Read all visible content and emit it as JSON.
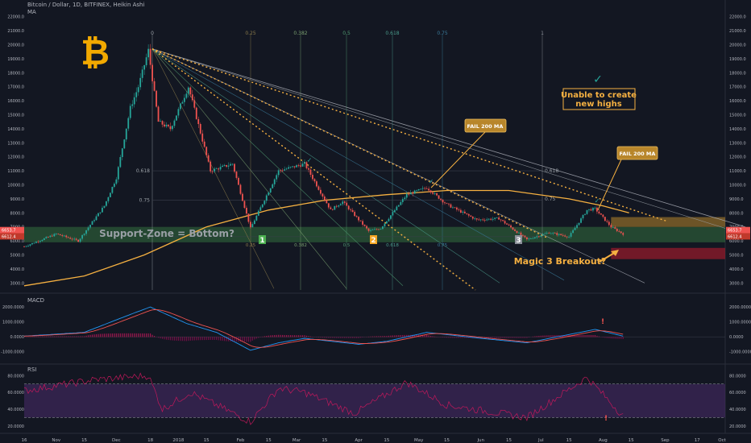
{
  "header": {
    "title": "Bitcoin / Dollar, 1D, BITFINEX, Heikin Ashi",
    "indicator": "MA"
  },
  "colors": {
    "background": "#131722",
    "up": "#26a69a",
    "down": "#ef5350",
    "ma": "#f5b041",
    "support_zone": "#4caf50",
    "resistance_zone": "#b8862b",
    "red_zone": "#8b1a2b",
    "macd_hist_pos": "#c2185b",
    "rsi_band": "#4a2c6b"
  },
  "annotations": {
    "support_zone": "Support-Zone = Bottom?",
    "fail_ma_1": "FAIL 200 MA",
    "fail_ma_2": "FAIL 200 MA",
    "unable": "Unable to create new highs",
    "magic": "Magic 3 Breakout?",
    "marker1": "1",
    "marker2": "2",
    "marker3": "3"
  },
  "fib_labels": {
    "top": [
      "0",
      "0.25",
      "0.382",
      "0.5",
      "0.618",
      "0.75",
      "1"
    ],
    "mid": [
      "0.618",
      "0.75",
      "1"
    ],
    "bottom": [
      "0.25",
      "0.382",
      "0.5",
      "0.618",
      "0.75"
    ],
    "right": [
      "0.618",
      "0.75"
    ]
  },
  "price_axis": [
    "22000.0",
    "21000.0",
    "20000.0",
    "19000.0",
    "18000.0",
    "17000.0",
    "16000.0",
    "15000.0",
    "14000.0",
    "13000.0",
    "12000.0",
    "11000.0",
    "10000.0",
    "9000.0",
    "8000.0",
    "7000.0",
    "6000.0",
    "5000.0",
    "4000.0",
    "3000.0"
  ],
  "price_tags": [
    "6653.7",
    "6612.4"
  ],
  "macd": {
    "label": "MACD",
    "axis": [
      "2000.0000",
      "1000.0000",
      "0.0000",
      "-1000.0000"
    ]
  },
  "rsi": {
    "label": "RSI",
    "axis": [
      "80.0000",
      "60.0000",
      "40.0000",
      "20.0000"
    ]
  },
  "time_axis": [
    "16",
    "Nov",
    "15",
    "Dec",
    "18",
    "2018",
    "15",
    "Feb",
    "15",
    "Mar",
    "15",
    "Apr",
    "15",
    "May",
    "15",
    "Jun",
    "15",
    "Jul",
    "15",
    "Aug",
    "15",
    "Sep",
    "17",
    "Oct"
  ],
  "chart_data": {
    "type": "candlestick",
    "title": "Bitcoin / Dollar, 1D, BITFINEX, Heikin Ashi",
    "ylim": [
      2500,
      22500
    ],
    "y_ticks": [
      3000,
      4000,
      5000,
      6000,
      7000,
      8000,
      9000,
      10000,
      11000,
      12000,
      13000,
      14000,
      15000,
      16000,
      17000,
      18000,
      19000,
      20000,
      21000,
      22000
    ],
    "price_path": [
      [
        "2017-10-16",
        5600
      ],
      [
        "2017-11-01",
        6500
      ],
      [
        "2017-11-12",
        6000
      ],
      [
        "2017-11-25",
        8500
      ],
      [
        "2017-12-01",
        10500
      ],
      [
        "2017-12-08",
        15500
      ],
      [
        "2017-12-12",
        17000
      ],
      [
        "2017-12-17",
        19600
      ],
      [
        "2017-12-22",
        14500
      ],
      [
        "2017-12-28",
        14000
      ],
      [
        "2018-01-06",
        17000
      ],
      [
        "2018-01-17",
        11000
      ],
      [
        "2018-01-28",
        11500
      ],
      [
        "2018-02-06",
        6900
      ],
      [
        "2018-02-20",
        11000
      ],
      [
        "2018-03-05",
        11500
      ],
      [
        "2018-03-18",
        8200
      ],
      [
        "2018-03-24",
        8800
      ],
      [
        "2018-04-06",
        6700
      ],
      [
        "2018-04-12",
        6900
      ],
      [
        "2018-04-25",
        9300
      ],
      [
        "2018-05-05",
        9800
      ],
      [
        "2018-05-15",
        8600
      ],
      [
        "2018-05-30",
        7500
      ],
      [
        "2018-06-10",
        7600
      ],
      [
        "2018-06-24",
        6100
      ],
      [
        "2018-07-05",
        6600
      ],
      [
        "2018-07-15",
        6300
      ],
      [
        "2018-07-24",
        8200
      ],
      [
        "2018-07-28",
        8300
      ],
      [
        "2018-08-05",
        7000
      ],
      [
        "2018-08-11",
        6500
      ]
    ],
    "ma200": [
      [
        "2017-10-16",
        2800
      ],
      [
        "2017-11-15",
        3500
      ],
      [
        "2017-12-15",
        5000
      ],
      [
        "2018-01-15",
        7000
      ],
      [
        "2018-02-15",
        8200
      ],
      [
        "2018-03-15",
        8900
      ],
      [
        "2018-04-15",
        9300
      ],
      [
        "2018-05-15",
        9600
      ],
      [
        "2018-06-15",
        9600
      ],
      [
        "2018-07-15",
        9000
      ],
      [
        "2018-08-01",
        8500
      ],
      [
        "2018-08-14",
        8000
      ]
    ],
    "support_zone": [
      5900,
      7000
    ],
    "resistance_zone": [
      7000,
      7700
    ],
    "red_zone": [
      4700,
      5500
    ],
    "macd": {
      "macd_line": [
        [
          "2017-10-16",
          50
        ],
        [
          "2017-11-15",
          300
        ],
        [
          "2017-12-08",
          1500
        ],
        [
          "2017-12-18",
          2000
        ],
        [
          "2018-01-05",
          900
        ],
        [
          "2018-01-20",
          300
        ],
        [
          "2018-02-06",
          -900
        ],
        [
          "2018-02-20",
          -400
        ],
        [
          "2018-03-05",
          -100
        ],
        [
          "2018-04-01",
          -500
        ],
        [
          "2018-04-15",
          -300
        ],
        [
          "2018-05-05",
          300
        ],
        [
          "2018-06-01",
          -100
        ],
        [
          "2018-06-24",
          -400
        ],
        [
          "2018-07-28",
          500
        ],
        [
          "2018-08-14",
          -50
        ]
      ]
    },
    "rsi": {
      "levels": [
        70,
        30
      ],
      "line": [
        [
          "2017-10-16",
          62
        ],
        [
          "2017-11-20",
          75
        ],
        [
          "2017-12-17",
          80
        ],
        [
          "2017-12-24",
          40
        ],
        [
          "2018-01-07",
          60
        ],
        [
          "2018-02-06",
          25
        ],
        [
          "2018-02-20",
          65
        ],
        [
          "2018-03-05",
          60
        ],
        [
          "2018-03-30",
          35
        ],
        [
          "2018-04-25",
          72
        ],
        [
          "2018-05-15",
          45
        ],
        [
          "2018-06-24",
          30
        ],
        [
          "2018-07-24",
          78
        ],
        [
          "2018-08-11",
          32
        ]
      ]
    }
  }
}
